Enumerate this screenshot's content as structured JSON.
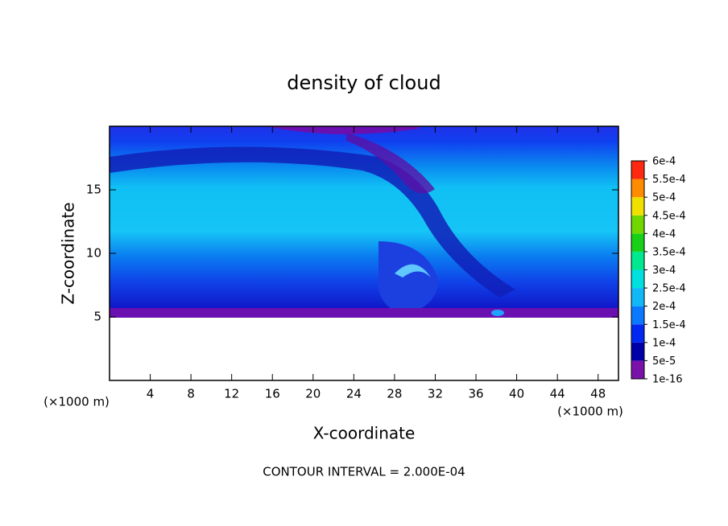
{
  "chart_data": {
    "type": "contour",
    "title": "density of cloud",
    "x_label": "X-coordinate",
    "y_label": "Z-coordinate",
    "x_unit": "(×1000 m)",
    "y_unit": "(×1000 m)",
    "footnote": "CONTOUR INTERVAL = 2.000E-04",
    "xlim": [
      0,
      50
    ],
    "ylim": [
      0,
      20
    ],
    "xticks": [
      4,
      8,
      12,
      16,
      20,
      24,
      28,
      32,
      36,
      40,
      44,
      48
    ],
    "yticks": [
      5,
      10,
      15
    ],
    "colorbar": {
      "levels": [
        {
          "value": 1e-16,
          "label": "1e-16"
        },
        {
          "value": 5e-05,
          "label": "5e-5"
        },
        {
          "value": 0.0001,
          "label": "1e-4"
        },
        {
          "value": 0.00015,
          "label": "1.5e-4"
        },
        {
          "value": 0.0002,
          "label": "2e-4"
        },
        {
          "value": 0.00025,
          "label": "2.5e-4"
        },
        {
          "value": 0.0003,
          "label": "3e-4"
        },
        {
          "value": 0.00035,
          "label": "3.5e-4"
        },
        {
          "value": 0.0004,
          "label": "4e-4"
        },
        {
          "value": 0.00045,
          "label": "4.5e-4"
        },
        {
          "value": 0.0005,
          "label": "5e-4"
        },
        {
          "value": 0.00055,
          "label": "5.5e-4"
        },
        {
          "value": 0.0006,
          "label": "6e-4"
        }
      ],
      "colors": [
        "#7a12aa",
        "#0000a8",
        "#0028f0",
        "#0a78ff",
        "#10b8f8",
        "#00e0e0",
        "#00e890",
        "#18d018",
        "#70d800",
        "#f0e000",
        "#ff8c00",
        "#ff2810"
      ]
    }
  }
}
